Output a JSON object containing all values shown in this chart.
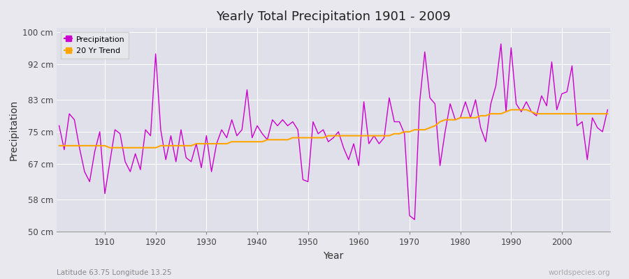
{
  "title": "Yearly Total Precipitation 1901 - 2009",
  "xlabel": "Year",
  "ylabel": "Precipitation",
  "subtitle_left": "Latitude 63.75 Longitude 13.25",
  "subtitle_right": "worldspecies.org",
  "ylim": [
    50,
    101
  ],
  "yticks": [
    50,
    58,
    67,
    75,
    83,
    92,
    100
  ],
  "ytick_labels": [
    "50 cm",
    "58 cm",
    "67 cm",
    "75 cm",
    "83 cm",
    "92 cm",
    "100 cm"
  ],
  "xlim": [
    1900.5,
    2009.5
  ],
  "xticks": [
    1910,
    1920,
    1930,
    1940,
    1950,
    1960,
    1970,
    1980,
    1990,
    2000
  ],
  "precip_color": "#CC00CC",
  "trend_color": "#FFA500",
  "bg_color": "#E8E8EE",
  "plot_bg_color": "#E0E0EA",
  "grid_color": "#FFFFFF",
  "years": [
    1901,
    1902,
    1903,
    1904,
    1905,
    1906,
    1907,
    1908,
    1909,
    1910,
    1911,
    1912,
    1913,
    1914,
    1915,
    1916,
    1917,
    1918,
    1919,
    1920,
    1921,
    1922,
    1923,
    1924,
    1925,
    1926,
    1927,
    1928,
    1929,
    1930,
    1931,
    1932,
    1933,
    1934,
    1935,
    1936,
    1937,
    1938,
    1939,
    1940,
    1941,
    1942,
    1943,
    1944,
    1945,
    1946,
    1947,
    1948,
    1949,
    1950,
    1951,
    1952,
    1953,
    1954,
    1955,
    1956,
    1957,
    1958,
    1959,
    1960,
    1961,
    1962,
    1963,
    1964,
    1965,
    1966,
    1967,
    1968,
    1969,
    1970,
    1971,
    1972,
    1973,
    1974,
    1975,
    1976,
    1977,
    1978,
    1979,
    1980,
    1981,
    1982,
    1983,
    1984,
    1985,
    1986,
    1987,
    1988,
    1989,
    1990,
    1991,
    1992,
    1993,
    1994,
    1995,
    1996,
    1997,
    1998,
    1999,
    2000,
    2001,
    2002,
    2003,
    2004,
    2005,
    2006,
    2007,
    2008,
    2009
  ],
  "precip": [
    76.5,
    70.5,
    79.5,
    78.0,
    71.0,
    65.0,
    62.5,
    70.0,
    75.0,
    59.5,
    67.5,
    75.5,
    74.5,
    67.5,
    65.0,
    69.5,
    65.5,
    75.5,
    74.0,
    94.5,
    75.5,
    68.0,
    74.0,
    67.5,
    75.5,
    68.5,
    67.5,
    72.0,
    66.0,
    74.0,
    65.0,
    72.0,
    75.5,
    73.5,
    78.0,
    74.0,
    75.5,
    85.5,
    73.5,
    76.5,
    74.5,
    73.0,
    78.0,
    76.5,
    78.0,
    76.5,
    77.5,
    75.5,
    63.0,
    62.5,
    77.5,
    74.5,
    75.5,
    72.5,
    73.5,
    75.0,
    71.0,
    68.0,
    72.0,
    66.5,
    82.5,
    72.0,
    74.0,
    72.0,
    73.5,
    83.5,
    77.5,
    77.5,
    74.5,
    54.0,
    53.0,
    82.5,
    95.0,
    83.5,
    82.0,
    66.5,
    75.0,
    82.0,
    78.0,
    78.5,
    82.5,
    78.5,
    83.0,
    76.0,
    72.5,
    82.0,
    86.5,
    97.0,
    80.0,
    96.0,
    82.0,
    80.0,
    82.5,
    80.0,
    79.0,
    84.0,
    81.5,
    92.5,
    80.5,
    84.5,
    85.0,
    91.5,
    76.5,
    77.5,
    68.0,
    78.5,
    76.0,
    75.0,
    80.5
  ],
  "trend": [
    71.5,
    71.5,
    71.5,
    71.5,
    71.5,
    71.5,
    71.5,
    71.5,
    71.5,
    71.5,
    71.0,
    71.0,
    71.0,
    71.0,
    71.0,
    71.0,
    71.0,
    71.0,
    71.0,
    71.0,
    71.5,
    71.5,
    71.5,
    71.5,
    71.5,
    71.5,
    71.5,
    72.0,
    72.0,
    72.0,
    72.0,
    72.0,
    72.0,
    72.0,
    72.5,
    72.5,
    72.5,
    72.5,
    72.5,
    72.5,
    72.5,
    73.0,
    73.0,
    73.0,
    73.0,
    73.0,
    73.5,
    73.5,
    73.5,
    73.5,
    73.5,
    73.5,
    73.5,
    74.0,
    74.0,
    74.0,
    74.0,
    74.0,
    74.0,
    74.0,
    74.0,
    74.0,
    74.0,
    74.0,
    74.0,
    74.0,
    74.5,
    74.5,
    75.0,
    75.0,
    75.5,
    75.5,
    75.5,
    76.0,
    76.5,
    77.5,
    78.0,
    78.0,
    78.0,
    78.5,
    78.5,
    78.5,
    78.5,
    79.0,
    79.0,
    79.5,
    79.5,
    79.5,
    80.0,
    80.5,
    80.5,
    80.5,
    80.5,
    80.0,
    79.5,
    79.5,
    79.5,
    79.5,
    79.5,
    79.5,
    79.5,
    79.5,
    79.5,
    79.5,
    79.5,
    79.5,
    79.5,
    79.5,
    79.5
  ]
}
